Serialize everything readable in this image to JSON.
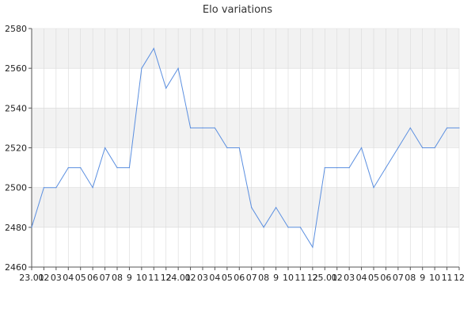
{
  "chart_data": {
    "type": "line",
    "title": "Elo variations",
    "xlabel": "",
    "ylabel": "",
    "ylim": [
      2460,
      2580
    ],
    "yticks": [
      2460,
      2480,
      2500,
      2520,
      2540,
      2560,
      2580
    ],
    "grid": true,
    "x_tick_labels": [
      "23.01",
      "02",
      "03",
      "04",
      "05",
      "06",
      "07",
      "08",
      "9",
      "10",
      "11",
      "12",
      "24.01",
      "02",
      "03",
      "04",
      "05",
      "06",
      "07",
      "08",
      "9",
      "10",
      "11",
      "12",
      "25.01",
      "02",
      "03",
      "04",
      "05",
      "06",
      "07",
      "08",
      "9",
      "10",
      "11",
      "12"
    ],
    "series": [
      {
        "values": [
          2480,
          2500,
          2500,
          2510,
          2510,
          2500,
          2520,
          2510,
          2510,
          2560,
          2570,
          2550,
          2560,
          2530,
          2530,
          2530,
          2520,
          2520,
          2490,
          2480,
          2490,
          2480,
          2480,
          2470,
          2510,
          2510,
          2510,
          2520,
          2500,
          2510,
          2520,
          2530,
          2520,
          2520,
          2530,
          2530
        ]
      }
    ],
    "colors": {
      "line": "#5b8fe0",
      "band": "#f2f2f2",
      "grid": "#d9d9d9",
      "axis": "#555555"
    }
  }
}
